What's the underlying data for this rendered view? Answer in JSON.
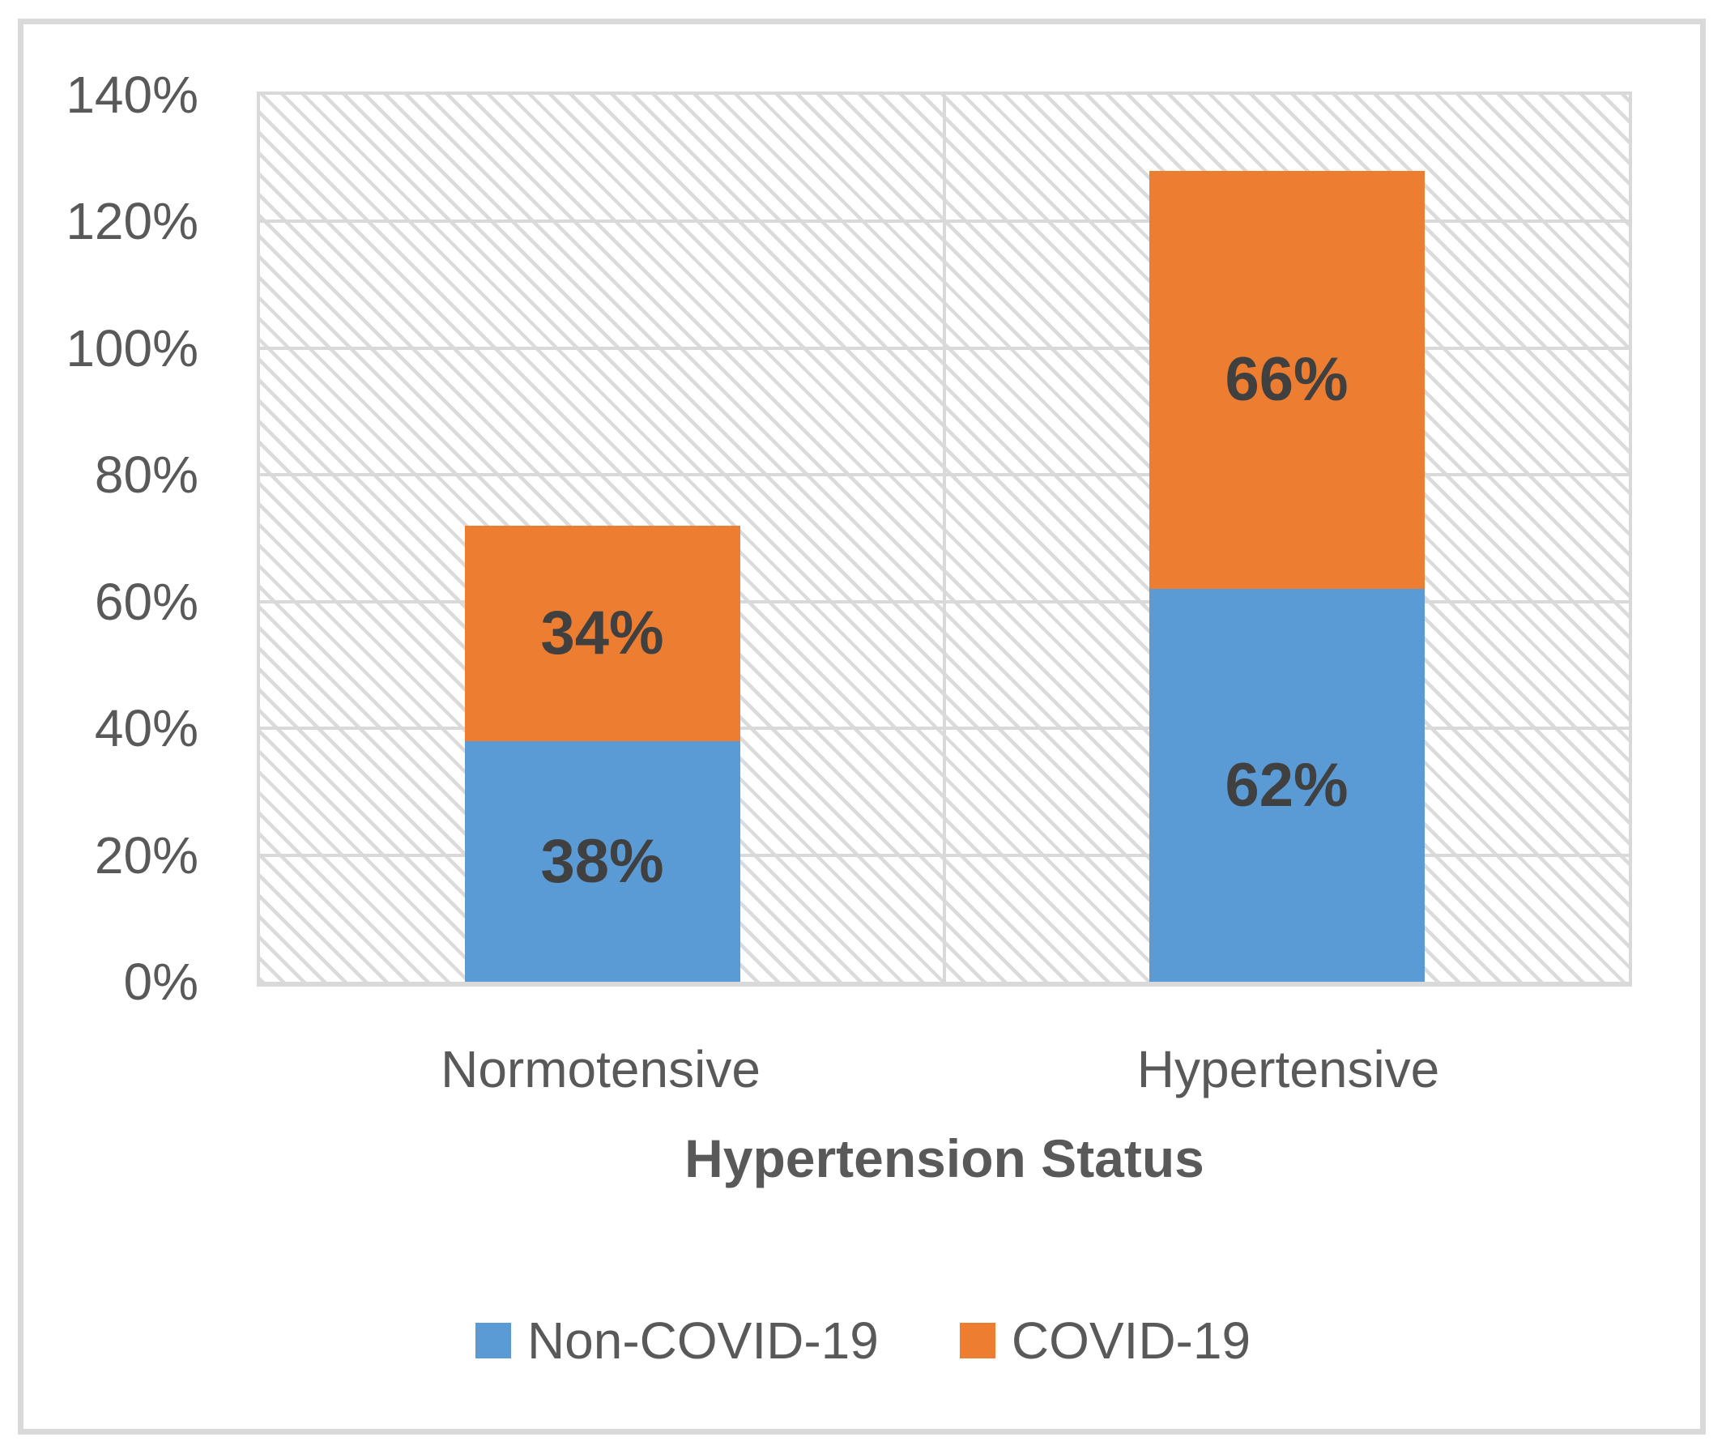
{
  "chart_data": {
    "type": "bar",
    "stacked": true,
    "title": "",
    "xlabel": "Hypertension Status",
    "ylabel": "",
    "categories": [
      "Normotensive",
      "Hypertensive"
    ],
    "series": [
      {
        "name": "Non-COVID-19",
        "color": "#5B9BD5",
        "values": [
          38,
          62
        ],
        "data_labels": [
          "38%",
          "62%"
        ]
      },
      {
        "name": "COVID-19",
        "color": "#ED7D31",
        "values": [
          34,
          66
        ],
        "data_labels": [
          "34%",
          "66%"
        ]
      }
    ],
    "category_totals": [
      72,
      128
    ],
    "ylim": [
      0,
      140
    ],
    "ytick_values": [
      0,
      20,
      40,
      60,
      80,
      100,
      120,
      140
    ],
    "ytick_labels": [
      "0%",
      "20%",
      "40%",
      "60%",
      "80%",
      "100%",
      "120%",
      "140%"
    ],
    "grid": true,
    "legend_position": "bottom",
    "plot_background": "diagonal-hatch"
  },
  "colors": {
    "grid": "#D9D9D9",
    "frame_border": "#D9D9D9",
    "hatch_line": "#DBDBDB",
    "axis_text": "#595959",
    "data_label_text": "#404040"
  }
}
